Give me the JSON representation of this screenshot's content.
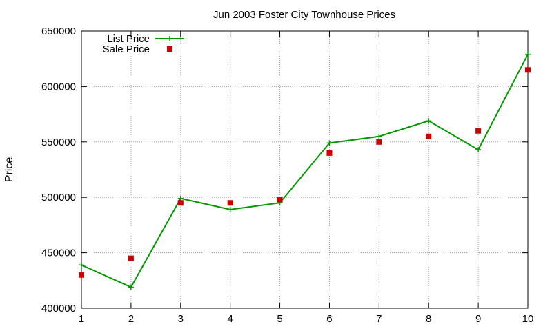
{
  "chart_data": {
    "type": "line",
    "title": "Jun 2003 Foster City Townhouse Prices",
    "xlabel": "",
    "ylabel": "Price",
    "xlim": [
      1,
      10
    ],
    "ylim": [
      400000,
      650000
    ],
    "x": [
      1,
      2,
      3,
      4,
      5,
      6,
      7,
      8,
      9,
      10
    ],
    "x_ticks": [
      "1",
      "2",
      "3",
      "4",
      "5",
      "6",
      "7",
      "8",
      "9",
      "10"
    ],
    "y_ticks": [
      "400000",
      "450000",
      "500000",
      "550000",
      "600000",
      "650000"
    ],
    "grid": true,
    "legend_position": "top-left",
    "series": [
      {
        "name": "List Price",
        "style": "line-with-plus-markers",
        "color": "#009900",
        "values": [
          439000,
          419000,
          499000,
          489000,
          495000,
          549000,
          555000,
          569000,
          543000,
          629000
        ]
      },
      {
        "name": "Sale Price",
        "style": "square-markers",
        "color": "#cc0000",
        "values": [
          430000,
          445000,
          495000,
          495000,
          498000,
          540000,
          550000,
          555000,
          560000,
          615000
        ]
      }
    ]
  }
}
